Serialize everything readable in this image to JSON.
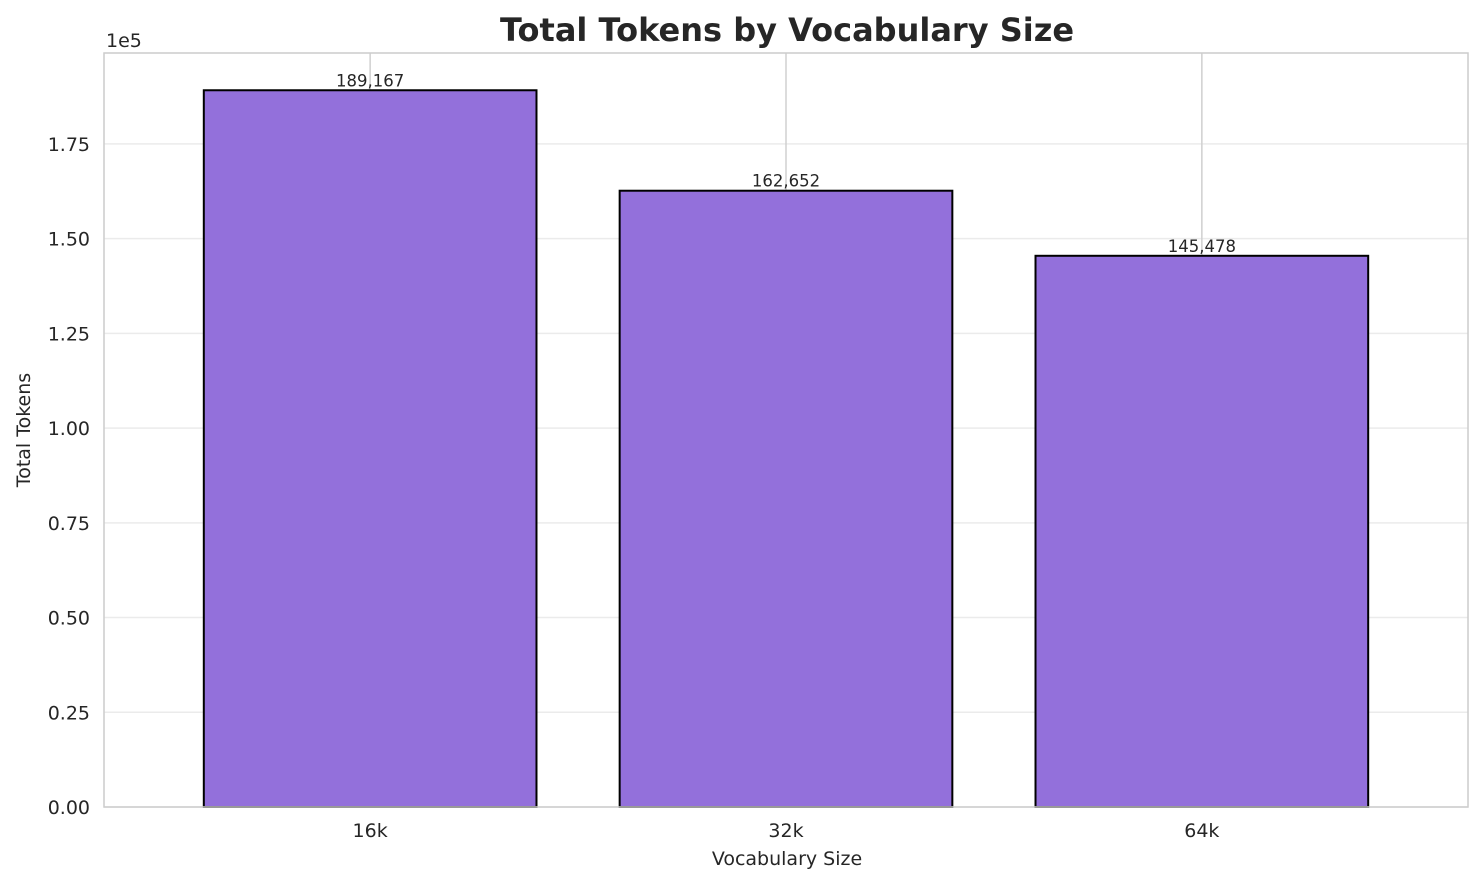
{
  "chart_data": {
    "type": "bar",
    "title": "Total Tokens by Vocabulary Size",
    "xlabel": "Vocabulary Size",
    "ylabel": "Total Tokens",
    "categories": [
      "16k",
      "32k",
      "64k"
    ],
    "values": [
      189167,
      162652,
      145478
    ],
    "data_labels": [
      "189,167",
      "162,652",
      "145,478"
    ],
    "ylim": [
      0,
      199000
    ],
    "yticks": [
      0,
      25000,
      50000,
      75000,
      100000,
      125000,
      150000,
      175000
    ],
    "ytick_labels": [
      "0.00",
      "0.25",
      "0.50",
      "0.75",
      "1.00",
      "1.25",
      "1.50",
      "1.75"
    ],
    "y_offset_label": "1e5",
    "grid": true,
    "bar_color": "#9370db",
    "bar_edge_color": "#000000",
    "legend": "none"
  }
}
